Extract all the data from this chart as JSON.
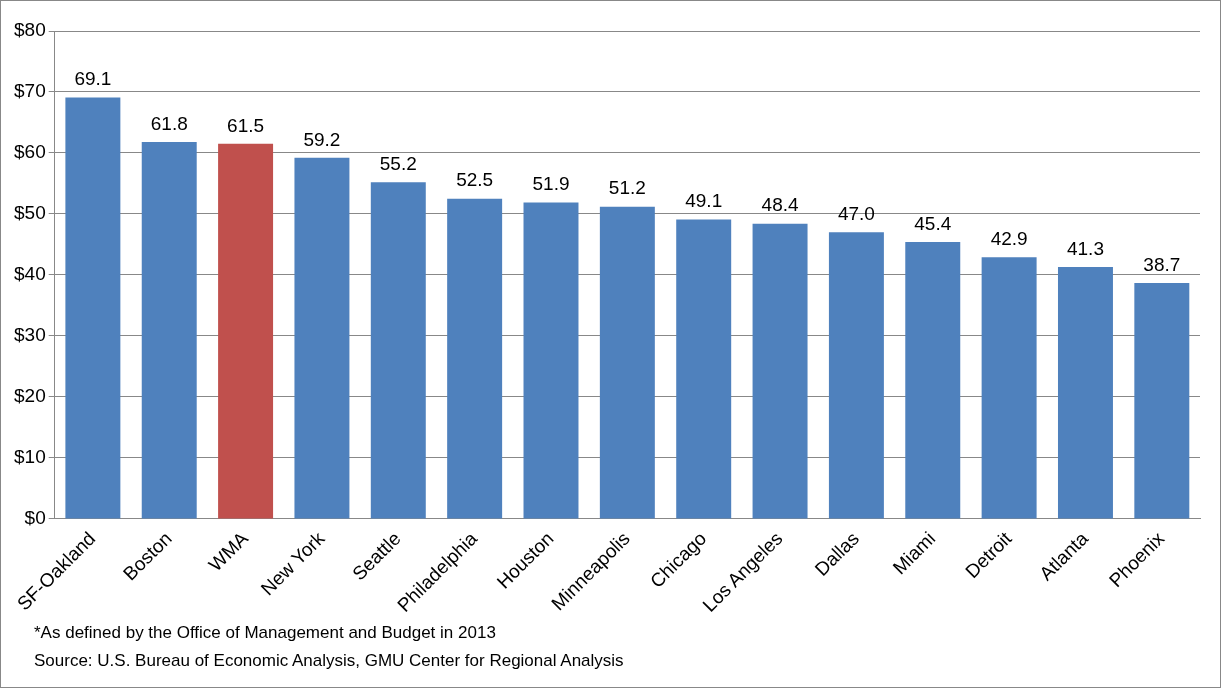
{
  "chart_data": {
    "type": "bar",
    "categories": [
      "SF-Oakland",
      "Boston",
      "WMA",
      "New York",
      "Seattle",
      "Philadelphia",
      "Houston",
      "Minneapolis",
      "Chicago",
      "Los Angeles",
      "Dallas",
      "Miami",
      "Detroit",
      "Atlanta",
      "Phoenix"
    ],
    "values": [
      69.1,
      61.8,
      61.5,
      59.2,
      55.2,
      52.5,
      51.9,
      51.2,
      49.1,
      48.4,
      47.0,
      45.4,
      42.9,
      41.3,
      38.7
    ],
    "value_labels": [
      "69.1",
      "61.8",
      "61.5",
      "59.2",
      "55.2",
      "52.5",
      "51.9",
      "51.2",
      "49.1",
      "48.4",
      "47.0",
      "45.4",
      "42.9",
      "41.3",
      "38.7"
    ],
    "colors": [
      "#4f81bd",
      "#4f81bd",
      "#c0504d",
      "#4f81bd",
      "#4f81bd",
      "#4f81bd",
      "#4f81bd",
      "#4f81bd",
      "#4f81bd",
      "#4f81bd",
      "#4f81bd",
      "#4f81bd",
      "#4f81bd",
      "#4f81bd",
      "#4f81bd"
    ],
    "ylim": [
      0,
      80
    ],
    "yticks": [
      {
        "value": 0,
        "label": "$0"
      },
      {
        "value": 10,
        "label": "$10"
      },
      {
        "value": 20,
        "label": "$20"
      },
      {
        "value": 30,
        "label": "$30"
      },
      {
        "value": 40,
        "label": "$40"
      },
      {
        "value": 50,
        "label": "$50"
      },
      {
        "value": 60,
        "label": "$60"
      },
      {
        "value": 70,
        "label": "$70"
      },
      {
        "value": 80,
        "label": "$80"
      }
    ],
    "grid": "y",
    "annotations": [
      "*As defined by the Office of Management and Budget in 2013",
      "Source: U.S. Bureau of Economic Analysis, GMU Center for Regional Analysis"
    ]
  }
}
